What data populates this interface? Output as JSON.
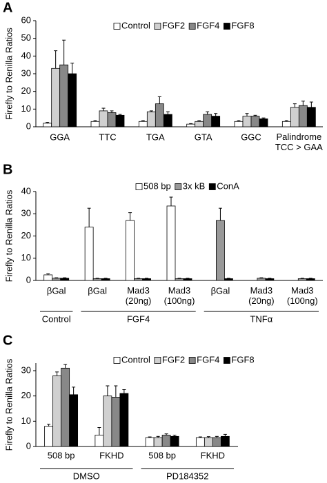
{
  "chart_data": [
    {
      "type": "bar",
      "panel_label": "A",
      "y_label": "Firefly to Renilla Ratios",
      "legend": "top",
      "ylim": [
        0,
        60
      ],
      "yticks": [
        0,
        10,
        20,
        30,
        40,
        50,
        60
      ],
      "groups": [
        {
          "categories": [
            "GGA",
            "TTC",
            "TGA",
            "GTA",
            "GGC",
            "Palindrome\nTCC > GAA"
          ]
        }
      ],
      "series": [
        {
          "name": "Control",
          "color": "#ffffff",
          "values": [
            2,
            3,
            3,
            1.5,
            3,
            3
          ],
          "errors": [
            0.5,
            0.5,
            0.5,
            0.3,
            0.5,
            0.5
          ]
        },
        {
          "name": "FGF2",
          "color": "#d0d0d0",
          "values": [
            33,
            9,
            8.5,
            3,
            6,
            11
          ],
          "errors": [
            10,
            1.5,
            0.5,
            0.5,
            1.5,
            2
          ]
        },
        {
          "name": "FGF4",
          "color": "#888888",
          "values": [
            35,
            8,
            13,
            7,
            6,
            12
          ],
          "errors": [
            14,
            1,
            4,
            1.5,
            0.5,
            2.5
          ]
        },
        {
          "name": "FGF8",
          "color": "#000000",
          "values": [
            30,
            6.5,
            7,
            6,
            4.5,
            11
          ],
          "errors": [
            6,
            0.5,
            1.5,
            1.5,
            0.5,
            3
          ]
        }
      ]
    },
    {
      "type": "bar",
      "panel_label": "B",
      "y_label": "Firefly to Renilla Ratios",
      "legend": "top",
      "ylim": [
        0,
        40
      ],
      "yticks": [
        0,
        10,
        20,
        30,
        40
      ],
      "groups": [
        {
          "name": "Control",
          "categories": [
            "βGal"
          ]
        },
        {
          "name": "FGF4",
          "categories": [
            "βGal",
            "Mad3\n(20ng)",
            "Mad3\n(100ng)"
          ]
        },
        {
          "name": "TNFα",
          "categories": [
            "βGal",
            "Mad3\n(20ng)",
            "Mad3\n(100ng)"
          ]
        }
      ],
      "series": [
        {
          "name": "508 bp",
          "color": "#ffffff",
          "values": [
            2.5,
            24,
            27,
            33.5,
            0,
            0,
            0
          ],
          "errors": [
            0.5,
            8.5,
            3.5,
            4,
            0,
            0,
            0
          ]
        },
        {
          "name": "3x kB",
          "color": "#999999",
          "values": [
            1,
            0.8,
            0.8,
            0.8,
            27,
            1,
            0.8
          ],
          "errors": [
            0.2,
            0.2,
            0.2,
            0.2,
            5.5,
            0.2,
            0.2
          ]
        },
        {
          "name": "ConA",
          "color": "#000000",
          "values": [
            1,
            0.8,
            0.8,
            0.8,
            0.8,
            0.8,
            0.8
          ],
          "errors": [
            0.2,
            0.2,
            0.2,
            0.2,
            0.2,
            0.2,
            0.2
          ]
        }
      ]
    },
    {
      "type": "bar",
      "panel_label": "C",
      "y_label": "Firefly to Renilla Ratios",
      "legend": "top",
      "ylim": [
        0,
        33
      ],
      "yticks": [
        0,
        10,
        20,
        30
      ],
      "groups": [
        {
          "name": "DMSO",
          "categories": [
            "508 bp",
            "FKHD"
          ]
        },
        {
          "name": "PD184352",
          "categories": [
            "508 bp",
            "FKHD"
          ]
        }
      ],
      "series": [
        {
          "name": "Control",
          "color": "#ffffff",
          "values": [
            8,
            4.5,
            3.5,
            3.5
          ],
          "errors": [
            0.8,
            3,
            0.3,
            0.3
          ]
        },
        {
          "name": "FGF2",
          "color": "#d0d0d0",
          "values": [
            28,
            20,
            3.5,
            3.5
          ],
          "errors": [
            1.5,
            4,
            0.5,
            0.4
          ]
        },
        {
          "name": "FGF4",
          "color": "#888888",
          "values": [
            31,
            19.5,
            4.5,
            3.5
          ],
          "errors": [
            1.5,
            4.5,
            0.5,
            0.5
          ]
        },
        {
          "name": "FGF8",
          "color": "#000000",
          "values": [
            20.5,
            21,
            4,
            4
          ],
          "errors": [
            3,
            1.5,
            0.5,
            0.8
          ]
        }
      ]
    }
  ]
}
